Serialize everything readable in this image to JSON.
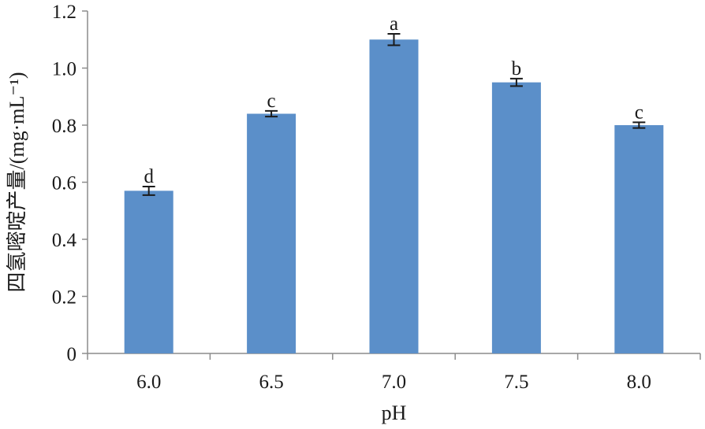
{
  "chart_data": {
    "type": "bar",
    "xlabel": "pH",
    "ylabel": "四氢嘧啶产量/(mg·mL⁻¹)",
    "categories": [
      "6.0",
      "6.5",
      "7.0",
      "7.5",
      "8.0"
    ],
    "values": [
      0.57,
      0.84,
      1.1,
      0.95,
      0.8
    ],
    "errors": [
      0.015,
      0.01,
      0.02,
      0.013,
      0.01
    ],
    "significance": [
      "d",
      "c",
      "a",
      "b",
      "c"
    ],
    "ylim": [
      0,
      1.2
    ],
    "yticks": [
      "0",
      "0.2",
      "0.4",
      "0.6",
      "0.8",
      "1.0",
      "1.2"
    ],
    "grid": false,
    "legend": "none",
    "bar_color": "#5b8fc9",
    "error_color": "#1a1a1a"
  }
}
